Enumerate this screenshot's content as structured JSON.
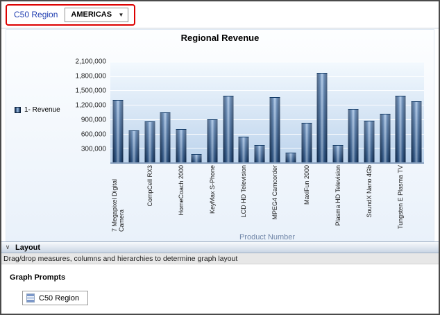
{
  "prompt_bar": {
    "label": "C50 Region",
    "dropdown_value": "AMERICAS"
  },
  "chart": {
    "title": "Regional Revenue",
    "legend_label": "1- Revenue",
    "x_axis_title": "Product Number"
  },
  "chart_data": {
    "type": "bar",
    "title": "Regional Revenue",
    "xlabel": "Product Number",
    "ylabel": "",
    "legend": [
      "1- Revenue"
    ],
    "legend_position": "left",
    "ylim": [
      0,
      2100000
    ],
    "y_ticks": [
      "2,100,000",
      "1,800,000",
      "1,500,000",
      "1,200,000",
      "900,000",
      "600,000",
      "300,000"
    ],
    "grid": true,
    "categories": [
      "7 Megapixel Digital Camera",
      "",
      "CompCell RX3",
      "",
      "HomeCoach 2000",
      "",
      "KeyMax S-Phone",
      "",
      "LCD HD Television",
      "",
      "MPEG4 Camcorder",
      "",
      "MaxiFun 2000",
      "",
      "Plasma HD Television",
      "",
      "SoundX Nano 4Gb",
      "",
      "Tungsten E Plasma TV",
      ""
    ],
    "series": [
      {
        "name": "1- Revenue",
        "values": [
          1300000,
          660000,
          850000,
          1050000,
          690000,
          175000,
          900000,
          1390000,
          530000,
          360000,
          1360000,
          200000,
          820000,
          1870000,
          360000,
          1110000,
          875000,
          1010000,
          1390000,
          1280000
        ]
      }
    ]
  },
  "layout_section": {
    "header": "Layout",
    "instruction": "Drag/drop measures, columns and hierarchies to determine graph layout",
    "graph_prompts_label": "Graph Prompts",
    "prompt_item": "C50 Region"
  },
  "colors": {
    "bar_dark": "#0f2c52",
    "bar_light": "#9dbde3",
    "annotation_red": "#dd0000",
    "prompt_label_blue": "#1f3db0"
  }
}
